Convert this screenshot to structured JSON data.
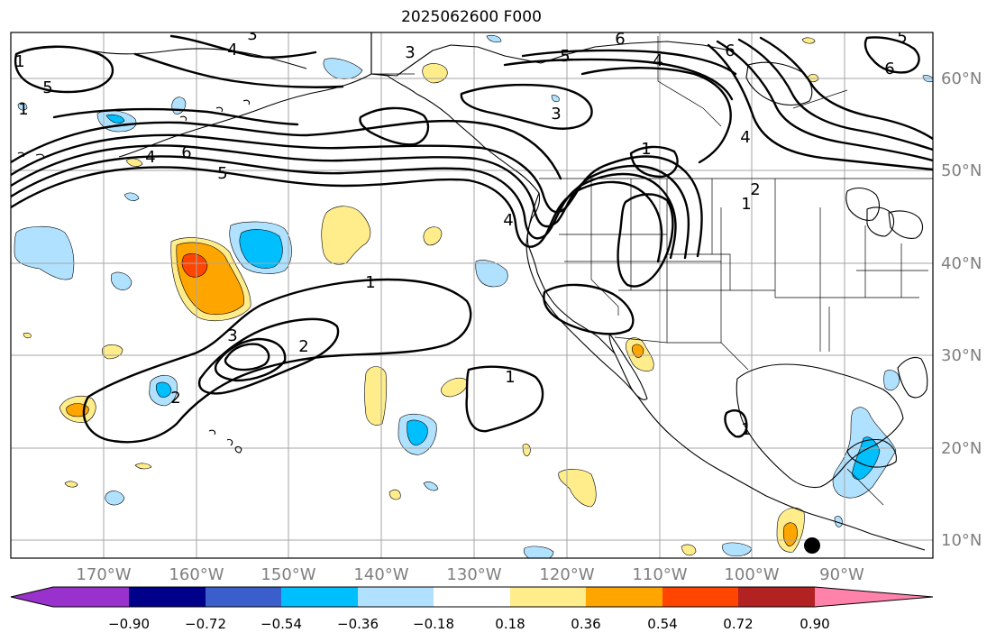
{
  "title": "2025062600 F000",
  "lon_labels": [
    "170°W",
    "160°W",
    "150°W",
    "140°W",
    "130°W",
    "120°W",
    "110°W",
    "100°W",
    "90°W"
  ],
  "lat_labels": [
    "60°N",
    "50°N",
    "40°N",
    "30°N",
    "20°N",
    "10°N"
  ],
  "colorbar": {
    "ticks": [
      "−0.90",
      "−0.72",
      "−0.54",
      "−0.36",
      "−0.18",
      "0.18",
      "0.36",
      "0.54",
      "0.72",
      "0.90"
    ],
    "colors": [
      "#9932cc",
      "#00008b",
      "#3a5fcd",
      "#00bfff",
      "#b0e2ff",
      "#ffffff",
      "#ffec8b",
      "#ffa500",
      "#ff4500",
      "#b22222",
      "#ff82ab"
    ]
  },
  "contour_labels": [
    "5",
    "4",
    "3",
    "5",
    "6",
    "4",
    "5",
    "6",
    "3",
    "3",
    "5",
    "4",
    "6",
    "6",
    "4",
    "1",
    "1",
    "4",
    "1",
    "1",
    "1",
    "2",
    "3",
    "2",
    "1",
    "1",
    "2"
  ],
  "marker": "storm-marker"
}
